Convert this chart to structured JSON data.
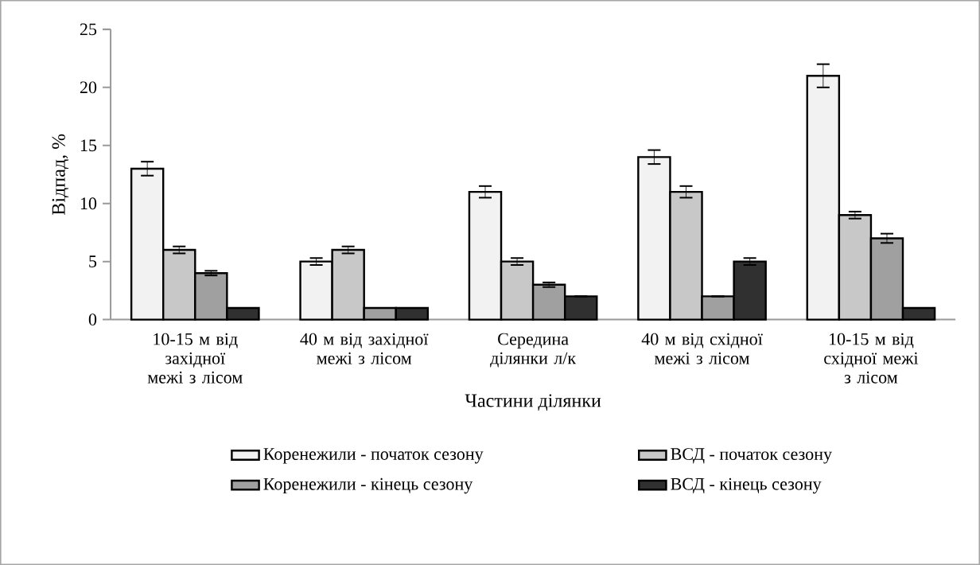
{
  "chart_data": {
    "type": "bar",
    "xlabel": "Частини ділянки",
    "ylabel": "Відпад, %",
    "categories": [
      "10-15 м від західної межі з лісом",
      "40 м від західної межі з лісом",
      "Середина ділянки л/к",
      "40 м від східної межі з лісом",
      "10-15 м від східної межі з лісом"
    ],
    "series": [
      {
        "name": "Коренежили - початок сезону",
        "color": "#f2f2f2",
        "values": [
          13,
          5,
          11,
          14,
          21
        ],
        "errors": [
          0.6,
          0.3,
          0.5,
          0.6,
          1.0
        ]
      },
      {
        "name": "ВСД - початок сезону",
        "color": "#c8c8c8",
        "values": [
          6,
          6,
          5,
          11,
          9
        ],
        "errors": [
          0.3,
          0.3,
          0.3,
          0.5,
          0.3
        ]
      },
      {
        "name": "Коренежили - кінець сезону",
        "color": "#a0a0a0",
        "values": [
          4,
          1,
          3,
          2,
          7
        ],
        "errors": [
          0.2,
          null,
          0.2,
          null,
          0.4
        ]
      },
      {
        "name": "ВСД - кінець сезону",
        "color": "#303030",
        "values": [
          1,
          1,
          2,
          5,
          1
        ],
        "errors": [
          null,
          null,
          null,
          0.3,
          null
        ]
      }
    ],
    "ylim": [
      0,
      25
    ],
    "yticks": [
      0,
      5,
      10,
      15,
      20,
      25
    ],
    "grid": false,
    "legend": "bottom"
  }
}
